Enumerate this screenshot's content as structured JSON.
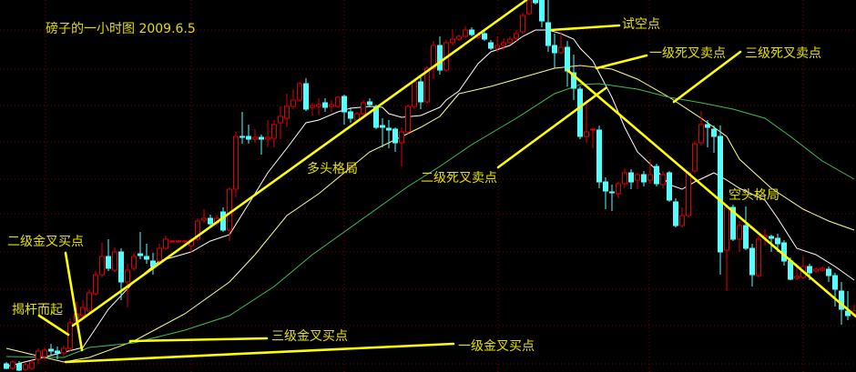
{
  "chart_data": {
    "type": "candlestick",
    "title": "磅子的一小时图 2009.6.5",
    "ylim": [
      1.6,
      1.6409
    ],
    "grid": true,
    "colors": {
      "up": "#e00000",
      "down": "#54ffff",
      "background": "#000000",
      "grid": "#7a0000",
      "annotation": "#ffff00",
      "ma_fast": "#ffffff",
      "ma_mid": "#ffff90",
      "ma_slow": "#3fbf4f"
    },
    "candles_ohlc": [
      [
        1.6009,
        1.6011,
        1.6003,
        1.6004
      ],
      [
        1.6004,
        1.6013,
        1.6002,
        1.6011
      ],
      [
        1.6009,
        1.6012,
        1.6001,
        1.6002
      ],
      [
        1.6003,
        1.601,
        1.6001,
        1.6008
      ],
      [
        1.6004,
        1.6013,
        1.6002,
        1.6011
      ],
      [
        1.6014,
        1.6026,
        1.6009,
        1.6023
      ],
      [
        1.6017,
        1.6027,
        1.6013,
        1.6024
      ],
      [
        1.6025,
        1.6031,
        1.6019,
        1.6023
      ],
      [
        1.6023,
        1.6028,
        1.6014,
        1.6021
      ],
      [
        1.6021,
        1.6029,
        1.6017,
        1.6026
      ],
      [
        1.6026,
        1.6059,
        1.6023,
        1.6054
      ],
      [
        1.6056,
        1.6077,
        1.6052,
        1.6064
      ],
      [
        1.6062,
        1.6079,
        1.6059,
        1.6071
      ],
      [
        1.6067,
        1.6091,
        1.6064,
        1.6087
      ],
      [
        1.6086,
        1.6111,
        1.6084,
        1.6107
      ],
      [
        1.6107,
        1.6142,
        1.6104,
        1.6127
      ],
      [
        1.6127,
        1.6146,
        1.6111,
        1.6114
      ],
      [
        1.6112,
        1.6137,
        1.611,
        1.6132
      ],
      [
        1.6132,
        1.6136,
        1.6079,
        1.6099
      ],
      [
        1.6099,
        1.6119,
        1.6071,
        1.6112
      ],
      [
        1.6114,
        1.6131,
        1.6111,
        1.6127
      ],
      [
        1.613,
        1.6154,
        1.6124,
        1.6128
      ],
      [
        1.6127,
        1.6141,
        1.6119,
        1.6124
      ],
      [
        1.6122,
        1.6131,
        1.6107,
        1.6116
      ],
      [
        1.6122,
        1.6141,
        1.6119,
        1.6136
      ],
      [
        1.6136,
        1.615,
        1.6134,
        1.6146
      ],
      [
        1.6144,
        1.6145,
        1.6143,
        1.6144
      ],
      [
        1.6144,
        1.6145,
        1.6143,
        1.6144
      ],
      [
        1.6144,
        1.6145,
        1.6143,
        1.6144
      ],
      [
        1.6139,
        1.6147,
        1.6131,
        1.6145
      ],
      [
        1.6146,
        1.6169,
        1.6144,
        1.6166
      ],
      [
        1.6167,
        1.6179,
        1.6164,
        1.6169
      ],
      [
        1.6169,
        1.6173,
        1.6161,
        1.6163
      ],
      [
        1.6164,
        1.6173,
        1.6161,
        1.6169
      ],
      [
        1.6176,
        1.6181,
        1.6154,
        1.6156
      ],
      [
        1.6156,
        1.6203,
        1.6144,
        1.6201
      ],
      [
        1.6201,
        1.6264,
        1.6192,
        1.6259
      ],
      [
        1.6259,
        1.6286,
        1.6251,
        1.6258
      ],
      [
        1.6259,
        1.6272,
        1.6251,
        1.6256
      ],
      [
        1.6256,
        1.6267,
        1.6252,
        1.6258
      ],
      [
        1.6258,
        1.6261,
        1.6239,
        1.6256
      ],
      [
        1.6256,
        1.6277,
        1.6247,
        1.6258
      ],
      [
        1.6257,
        1.6277,
        1.6247,
        1.6272
      ],
      [
        1.6274,
        1.6292,
        1.6256,
        1.6281
      ],
      [
        1.6279,
        1.6306,
        1.6269,
        1.6292
      ],
      [
        1.6292,
        1.6311,
        1.6289,
        1.6299
      ],
      [
        1.6299,
        1.6319,
        1.6297,
        1.6317
      ],
      [
        1.6317,
        1.6323,
        1.6287,
        1.6289
      ],
      [
        1.6291,
        1.6296,
        1.6282,
        1.6293
      ],
      [
        1.6292,
        1.6301,
        1.6282,
        1.6294
      ],
      [
        1.6296,
        1.6301,
        1.6286,
        1.6291
      ],
      [
        1.6292,
        1.6299,
        1.6286,
        1.6294
      ],
      [
        1.6292,
        1.6304,
        1.629,
        1.6302
      ],
      [
        1.6303,
        1.6305,
        1.6272,
        1.6286
      ],
      [
        1.6286,
        1.6291,
        1.6274,
        1.6279
      ],
      [
        1.6277,
        1.6286,
        1.6274,
        1.6284
      ],
      [
        1.6284,
        1.6299,
        1.6282,
        1.6296
      ],
      [
        1.6297,
        1.6301,
        1.6291,
        1.6294
      ],
      [
        1.6292,
        1.6294,
        1.6267,
        1.6269
      ],
      [
        1.6271,
        1.6279,
        1.6247,
        1.6269
      ],
      [
        1.6268,
        1.6277,
        1.6246,
        1.6266
      ],
      [
        1.6267,
        1.6269,
        1.6242,
        1.6252
      ],
      [
        1.6252,
        1.6269,
        1.6226,
        1.6264
      ],
      [
        1.6264,
        1.6294,
        1.6261,
        1.6292
      ],
      [
        1.6292,
        1.6321,
        1.6289,
        1.6319
      ],
      [
        1.6319,
        1.6324,
        1.6289,
        1.6297
      ],
      [
        1.6297,
        1.6336,
        1.6295,
        1.6334
      ],
      [
        1.6334,
        1.6364,
        1.6322,
        1.6359
      ],
      [
        1.6359,
        1.6369,
        1.6327,
        1.6332
      ],
      [
        1.6332,
        1.6365,
        1.633,
        1.6362
      ],
      [
        1.6362,
        1.6377,
        1.6359,
        1.6366
      ],
      [
        1.6366,
        1.6371,
        1.6364,
        1.6369
      ],
      [
        1.6369,
        1.638,
        1.6367,
        1.6376
      ],
      [
        1.6376,
        1.6379,
        1.6369,
        1.6371
      ],
      [
        1.6368,
        1.6374,
        1.6366,
        1.637
      ],
      [
        1.6372,
        1.6375,
        1.6364,
        1.6366
      ],
      [
        1.6362,
        1.6365,
        1.6354,
        1.6356
      ],
      [
        1.6356,
        1.6369,
        1.6352,
        1.6359
      ],
      [
        1.6359,
        1.6367,
        1.6354,
        1.6362
      ],
      [
        1.6362,
        1.6369,
        1.636,
        1.6366
      ],
      [
        1.6367,
        1.6376,
        1.6364,
        1.6372
      ],
      [
        1.6374,
        1.6395,
        1.6372,
        1.6392
      ],
      [
        1.6394,
        1.6412,
        1.6392,
        1.6409
      ],
      [
        1.6409,
        1.6412,
        1.6404,
        1.6406
      ],
      [
        1.6409,
        1.6412,
        1.6379,
        1.6386
      ],
      [
        1.6384,
        1.6409,
        1.6352,
        1.6359
      ],
      [
        1.6359,
        1.6372,
        1.6334,
        1.6351
      ],
      [
        1.6351,
        1.6374,
        1.6349,
        1.6357
      ],
      [
        1.6357,
        1.6364,
        1.6314,
        1.6331
      ],
      [
        1.6329,
        1.6349,
        1.6299,
        1.6312
      ],
      [
        1.6311,
        1.6314,
        1.6256,
        1.6259
      ],
      [
        1.6259,
        1.6299,
        1.6252,
        1.6264
      ],
      [
        1.6266,
        1.6268,
        1.6246,
        1.6267
      ],
      [
        1.6266,
        1.6271,
        1.6202,
        1.6209
      ],
      [
        1.6209,
        1.6214,
        1.6179,
        1.6199
      ],
      [
        1.6198,
        1.6206,
        1.6177,
        1.6197
      ],
      [
        1.6196,
        1.6209,
        1.6191,
        1.6207
      ],
      [
        1.6207,
        1.6224,
        1.6202,
        1.6219
      ],
      [
        1.6219,
        1.6223,
        1.6201,
        1.6209
      ],
      [
        1.6211,
        1.6219,
        1.6201,
        1.6217
      ],
      [
        1.6217,
        1.6221,
        1.6204,
        1.6209
      ],
      [
        1.6211,
        1.6234,
        1.6207,
        1.6217
      ],
      [
        1.6226,
        1.6229,
        1.6204,
        1.6207
      ],
      [
        1.6206,
        1.6221,
        1.6202,
        1.6217
      ],
      [
        1.6219,
        1.6221,
        1.6187,
        1.6189
      ],
      [
        1.6187,
        1.6191,
        1.6159,
        1.6161
      ],
      [
        1.6161,
        1.6181,
        1.6159,
        1.6172
      ],
      [
        1.6172,
        1.6221,
        1.617,
        1.6219
      ],
      [
        1.6221,
        1.6254,
        1.6219,
        1.6251
      ],
      [
        1.6252,
        1.6287,
        1.6249,
        1.6272
      ],
      [
        1.6272,
        1.6277,
        1.6247,
        1.6269
      ],
      [
        1.6267,
        1.6271,
        1.6241,
        1.6259
      ],
      [
        1.6259,
        1.6271,
        1.6107,
        1.6132
      ],
      [
        1.6134,
        1.6184,
        1.6089,
        1.6181
      ],
      [
        1.6181,
        1.6184,
        1.6144,
        1.6146
      ],
      [
        1.6146,
        1.6166,
        1.6132,
        1.6161
      ],
      [
        1.6161,
        1.6182,
        1.6134,
        1.6136
      ],
      [
        1.6136,
        1.6141,
        1.6094,
        1.6107
      ],
      [
        1.6106,
        1.6149,
        1.6104,
        1.6146
      ],
      [
        1.6148,
        1.6157,
        1.6139,
        1.615
      ],
      [
        1.6149,
        1.6151,
        1.6132,
        1.6147
      ],
      [
        1.6147,
        1.6152,
        1.6132,
        1.6141
      ],
      [
        1.6142,
        1.6145,
        1.6117,
        1.6122
      ],
      [
        1.6122,
        1.6126,
        1.6101,
        1.6102
      ],
      [
        1.6103,
        1.6119,
        1.6101,
        1.6105
      ],
      [
        1.6104,
        1.6127,
        1.6102,
        1.6116
      ],
      [
        1.6116,
        1.6119,
        1.6101,
        1.6109
      ],
      [
        1.6111,
        1.6115,
        1.6109,
        1.6113
      ],
      [
        1.6112,
        1.6116,
        1.611,
        1.6114
      ],
      [
        1.6113,
        1.6116,
        1.6099,
        1.6106
      ],
      [
        1.6106,
        1.6109,
        1.6072,
        1.6091
      ],
      [
        1.6089,
        1.6099,
        1.6052,
        1.6069
      ],
      [
        1.6067,
        1.6089,
        1.6057,
        1.6062
      ],
      [
        1.6064,
        1.6074,
        1.6061,
        1.6067
      ]
    ],
    "moving_averages": [
      {
        "color_key": "ma_fast",
        "points": [
          [
            0,
            1.6006
          ],
          [
            12,
            1.6027
          ],
          [
            16,
            1.6069
          ],
          [
            20,
            1.6099
          ],
          [
            24,
            1.6122
          ],
          [
            29,
            1.6132
          ],
          [
            32,
            1.6144
          ],
          [
            35,
            1.6151
          ],
          [
            39,
            1.6196
          ],
          [
            41,
            1.6219
          ],
          [
            44,
            1.6246
          ],
          [
            47,
            1.6274
          ],
          [
            49,
            1.6277
          ],
          [
            52,
            1.6286
          ],
          [
            54,
            1.629
          ],
          [
            57,
            1.6292
          ],
          [
            59,
            1.6291
          ],
          [
            60,
            1.6284
          ],
          [
            62,
            1.628
          ],
          [
            65,
            1.6282
          ],
          [
            68,
            1.6291
          ],
          [
            69,
            1.6299
          ],
          [
            71,
            1.6309
          ],
          [
            74,
            1.6339
          ],
          [
            76,
            1.6352
          ],
          [
            79,
            1.6359
          ],
          [
            81,
            1.6369
          ],
          [
            83,
            1.6376
          ],
          [
            85,
            1.6376
          ],
          [
            87,
            1.6372
          ],
          [
            89,
            1.6366
          ],
          [
            90,
            1.6356
          ],
          [
            92,
            1.6342
          ],
          [
            95,
            1.6302
          ],
          [
            97,
            1.6269
          ],
          [
            99,
            1.6242
          ],
          [
            102,
            1.6222
          ],
          [
            104,
            1.6206
          ],
          [
            106,
            1.6201
          ],
          [
            108,
            1.6209
          ],
          [
            111,
            1.6219
          ],
          [
            113,
            1.6211
          ],
          [
            115,
            1.6202
          ],
          [
            119,
            1.6189
          ],
          [
            121,
            1.6169
          ],
          [
            124,
            1.6136
          ],
          [
            127,
            1.6129
          ],
          [
            130,
            1.6116
          ],
          [
            133,
            1.6101
          ]
        ]
      },
      {
        "color_key": "ma_mid",
        "points": [
          [
            0,
            1.6026
          ],
          [
            9,
            1.6011
          ],
          [
            13,
            1.6016
          ],
          [
            20,
            1.6034
          ],
          [
            28,
            1.6064
          ],
          [
            35,
            1.6099
          ],
          [
            39,
            1.6129
          ],
          [
            44,
            1.6172
          ],
          [
            49,
            1.6196
          ],
          [
            53,
            1.6219
          ],
          [
            57,
            1.6242
          ],
          [
            60,
            1.6252
          ],
          [
            65,
            1.6269
          ],
          [
            68,
            1.6281
          ],
          [
            71,
            1.6306
          ],
          [
            76,
            1.6314
          ],
          [
            81,
            1.6324
          ],
          [
            86,
            1.6334
          ],
          [
            90,
            1.6337
          ],
          [
            95,
            1.6333
          ],
          [
            99,
            1.6322
          ],
          [
            104,
            1.6302
          ],
          [
            109,
            1.6279
          ],
          [
            113,
            1.6259
          ],
          [
            115,
            1.6234
          ],
          [
            120,
            1.6202
          ],
          [
            125,
            1.6179
          ],
          [
            129,
            1.6166
          ],
          [
            133,
            1.6156
          ]
        ]
      },
      {
        "color_key": "ma_slow",
        "points": [
          [
            0,
            1.6017
          ],
          [
            9,
            1.6016
          ],
          [
            13,
            1.6027
          ],
          [
            20,
            1.6032
          ],
          [
            28,
            1.6046
          ],
          [
            35,
            1.6062
          ],
          [
            42,
            1.6094
          ],
          [
            48,
            1.6129
          ],
          [
            56,
            1.6169
          ],
          [
            63,
            1.6204
          ],
          [
            68,
            1.6226
          ],
          [
            73,
            1.625
          ],
          [
            80,
            1.6279
          ],
          [
            86,
            1.6306
          ],
          [
            90,
            1.6316
          ],
          [
            93,
            1.6317
          ],
          [
            99,
            1.6311
          ],
          [
            104,
            1.6302
          ],
          [
            109,
            1.6296
          ],
          [
            114,
            1.6289
          ],
          [
            119,
            1.6279
          ],
          [
            123,
            1.6259
          ],
          [
            128,
            1.6232
          ],
          [
            133,
            1.6212
          ]
        ]
      }
    ],
    "annotations": {
      "try_short": "试空点",
      "sell_level1": "一级死叉卖点",
      "sell_level3": "三级死叉卖点",
      "sell_level2": "二级死叉卖点",
      "bull_pattern": "多头格局",
      "bear_pattern": "空头格局",
      "buy_level2": "二级金叉买点",
      "breakout": "揭杆而起",
      "buy_level3": "三级金叉买点",
      "buy_level1": "一级金叉买点"
    }
  }
}
